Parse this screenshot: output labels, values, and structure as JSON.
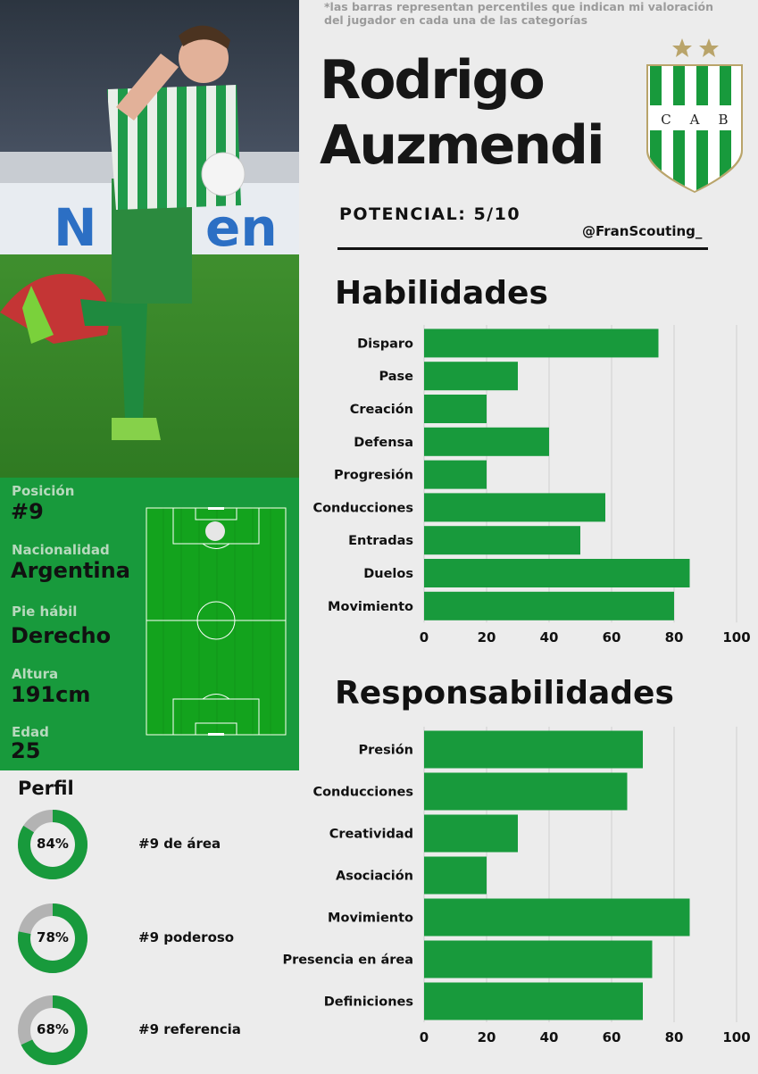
{
  "note": "*las barras representan percentiles que indican mi valoración del jugador en cada una de las categorías",
  "player": {
    "first_name": "Rodrigo",
    "last_name": "Auzmendi",
    "potential": "POTENCIAL: 5/10",
    "handle": "@FranScouting_"
  },
  "crest": {
    "letters": [
      "C",
      "A",
      "B"
    ],
    "colors": {
      "green": "#189a3c",
      "gold": "#b9a46a"
    }
  },
  "info": [
    {
      "label": "Posición",
      "value": "#9"
    },
    {
      "label": "Nacionalidad",
      "value": "Argentina"
    },
    {
      "label": "Pie hábil",
      "value": "Derecho"
    },
    {
      "label": "Altura",
      "value": "191cm"
    },
    {
      "label": "Edad",
      "value": "25"
    }
  ],
  "perfil": {
    "title": "Perfil",
    "items": [
      {
        "pct": 84,
        "pct_label": "84%",
        "label": "#9 de área"
      },
      {
        "pct": 78,
        "pct_label": "78%",
        "label": "#9 poderoso"
      },
      {
        "pct": 68,
        "pct_label": "68%",
        "label": "#9 referencia"
      }
    ]
  },
  "colors": {
    "bar": "#189a3c",
    "ring_bg": "#b3b3b3",
    "accent": "#189a3c"
  },
  "chart_data": [
    {
      "type": "bar",
      "orientation": "horizontal",
      "title": "Habilidades",
      "categories": [
        "Disparo",
        "Pase",
        "Creación",
        "Defensa",
        "Progresión",
        "Conducciones",
        "Entradas",
        "Duelos",
        "Movimiento"
      ],
      "values": [
        75,
        30,
        20,
        40,
        20,
        58,
        50,
        85,
        80
      ],
      "xlim": [
        0,
        100
      ],
      "xticks": [
        0,
        20,
        40,
        60,
        80,
        100
      ],
      "xtick_labels": [
        "0",
        "20",
        "40",
        "60",
        "80",
        "100"
      ],
      "grid": "vertical"
    },
    {
      "type": "bar",
      "orientation": "horizontal",
      "title": "Responsabilidades",
      "categories": [
        "Presión",
        "Conducciones",
        "Creatividad",
        "Asociación",
        "Movimiento",
        "Presencia en área",
        "Definiciones"
      ],
      "values": [
        70,
        65,
        30,
        20,
        85,
        73,
        70
      ],
      "xlim": [
        0,
        100
      ],
      "xticks": [
        0,
        20,
        40,
        60,
        80,
        100
      ],
      "xtick_labels": [
        "0",
        "20",
        "40",
        "60",
        "80",
        "100"
      ],
      "grid": "vertical"
    }
  ]
}
